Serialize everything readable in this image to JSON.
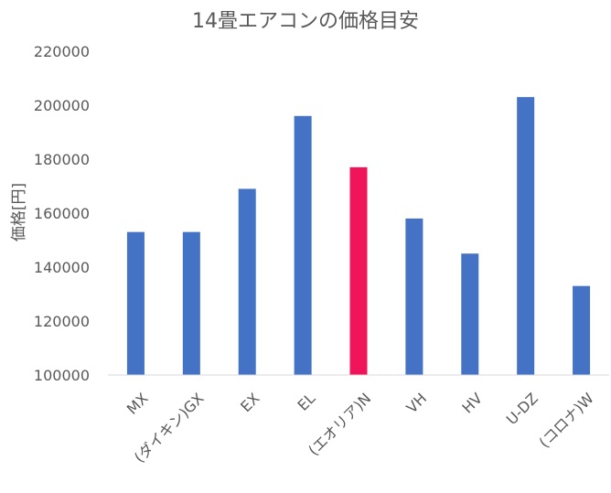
{
  "chart_data": {
    "type": "bar",
    "title": "14畳エアコンの価格目安",
    "xlabel": "",
    "ylabel": "価格[円]",
    "categories": [
      "MX",
      "(ダイキン)GX",
      "EX",
      "EL",
      "(エオリア)N",
      "VH",
      "HV",
      "U-DZ",
      "(コロナ)W"
    ],
    "values": [
      153000,
      153000,
      169000,
      196000,
      177000,
      158000,
      145000,
      203000,
      133000
    ],
    "ylim": [
      100000,
      220000
    ],
    "yticks": [
      100000,
      120000,
      140000,
      160000,
      180000,
      200000,
      220000
    ],
    "grid": false,
    "legend": "none",
    "colors": {
      "default": "#4472C4",
      "highlight": "#F0145A",
      "axis": "#D9D9D9"
    },
    "highlight_index": 4
  }
}
